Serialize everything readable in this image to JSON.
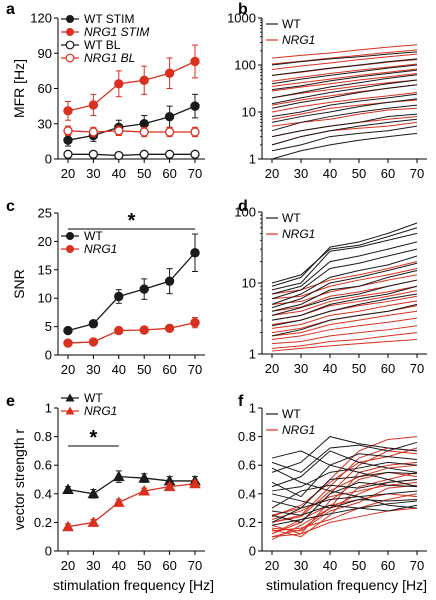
{
  "colors": {
    "wt": "#1a1a1a",
    "nrg1": "#d9301f",
    "axis": "#000000"
  },
  "chart_data": [
    {
      "panel": "a",
      "type": "line",
      "x": [
        20,
        30,
        40,
        50,
        60,
        70
      ],
      "ylabel": "MFR [Hz]",
      "ylim": [
        0,
        120
      ],
      "yticks": [
        0,
        30,
        60,
        90,
        120
      ],
      "scale": "linear",
      "legend_position": "top-left",
      "series": [
        {
          "name": "WT STIM",
          "color_key": "wt",
          "marker": "circle-filled",
          "values": [
            16,
            20,
            27,
            30,
            36,
            45
          ],
          "err": [
            5,
            5,
            6,
            7,
            9,
            10
          ]
        },
        {
          "name": "NRG1 STIM",
          "color_key": "nrg1",
          "marker": "circle-filled",
          "values": [
            41,
            46,
            64,
            67,
            73,
            83
          ],
          "err": [
            8,
            9,
            11,
            12,
            13,
            14
          ]
        },
        {
          "name": "WT BL",
          "color_key": "wt",
          "marker": "circle-open",
          "values": [
            4,
            4,
            3,
            4,
            4,
            4
          ],
          "err": [
            2,
            1,
            1,
            1,
            1,
            1
          ]
        },
        {
          "name": "NRG1 BL",
          "color_key": "nrg1",
          "marker": "circle-open",
          "values": [
            24,
            23,
            24,
            23,
            23,
            23
          ],
          "err": [
            4,
            4,
            4,
            4,
            4,
            4
          ]
        }
      ]
    },
    {
      "panel": "b",
      "type": "line",
      "x": [
        20,
        30,
        40,
        50,
        60,
        70
      ],
      "scale": "log",
      "ylim": [
        1,
        1000
      ],
      "yticks": [
        1,
        10,
        100,
        1000
      ],
      "legend_position": "top-left",
      "legend": [
        {
          "name": "WT",
          "color_key": "wt"
        },
        {
          "name": "NRG1",
          "color_key": "nrg1"
        }
      ],
      "wt_lines": [
        [
          1,
          1.5,
          2,
          2.5,
          3,
          3.5
        ],
        [
          1.5,
          2,
          3,
          3.5,
          4,
          5
        ],
        [
          2,
          3,
          4,
          5,
          6,
          7
        ],
        [
          3,
          4,
          5,
          6,
          8,
          9
        ],
        [
          4,
          6,
          8,
          10,
          12,
          14
        ],
        [
          6,
          8,
          10,
          13,
          16,
          19
        ],
        [
          8,
          10,
          14,
          17,
          20,
          24
        ],
        [
          12,
          16,
          20,
          26,
          32,
          38
        ],
        [
          15,
          20,
          26,
          32,
          40,
          48
        ],
        [
          20,
          26,
          34,
          42,
          52,
          62
        ],
        [
          30,
          36,
          46,
          56,
          66,
          78
        ],
        [
          40,
          50,
          60,
          72,
          86,
          100
        ],
        [
          60,
          72,
          86,
          100,
          118,
          135
        ],
        [
          100,
          118,
          135,
          150,
          170,
          190
        ]
      ],
      "nrg1_lines": [
        [
          2,
          3,
          4,
          4.5,
          5,
          6
        ],
        [
          3,
          4,
          5,
          6,
          7,
          8
        ],
        [
          5,
          6,
          7,
          9,
          11,
          12
        ],
        [
          7,
          9,
          12,
          14,
          16,
          18
        ],
        [
          10,
          13,
          16,
          19,
          22,
          26
        ],
        [
          14,
          18,
          22,
          27,
          32,
          38
        ],
        [
          20,
          25,
          30,
          36,
          42,
          48
        ],
        [
          28,
          34,
          40,
          48,
          56,
          66
        ],
        [
          35,
          42,
          50,
          60,
          70,
          82
        ],
        [
          45,
          55,
          66,
          78,
          90,
          105
        ],
        [
          60,
          70,
          84,
          98,
          115,
          130
        ],
        [
          80,
          95,
          110,
          130,
          150,
          170
        ],
        [
          105,
          120,
          140,
          160,
          185,
          210
        ],
        [
          140,
          160,
          180,
          210,
          240,
          270
        ]
      ]
    },
    {
      "panel": "c",
      "type": "line",
      "x": [
        20,
        30,
        40,
        50,
        60,
        70
      ],
      "ylabel": "SNR",
      "ylim": [
        0,
        25
      ],
      "yticks": [
        0,
        5,
        10,
        15,
        20,
        25
      ],
      "scale": "linear",
      "legend_position": "top-left",
      "significance": {
        "label": "*",
        "from": 20,
        "to": 70
      },
      "series": [
        {
          "name": "WT",
          "color_key": "wt",
          "marker": "circle-filled",
          "values": [
            4.3,
            5.5,
            10.3,
            11.6,
            13.0,
            18.0
          ],
          "err": [
            0.3,
            0.3,
            1.2,
            1.8,
            2.2,
            3.3
          ]
        },
        {
          "name": "NRG1",
          "color_key": "nrg1",
          "marker": "circle-filled",
          "values": [
            2.1,
            2.3,
            4.3,
            4.4,
            4.7,
            5.7
          ],
          "err": [
            0.2,
            0.2,
            0.6,
            0.5,
            0.5,
            0.9
          ]
        }
      ]
    },
    {
      "panel": "d",
      "type": "line",
      "x": [
        20,
        30,
        40,
        50,
        60,
        70
      ],
      "scale": "log",
      "ylim": [
        1,
        100
      ],
      "yticks": [
        1,
        10,
        100
      ],
      "legend_position": "top-left",
      "legend": [
        {
          "name": "WT",
          "color_key": "wt"
        },
        {
          "name": "NRG1",
          "color_key": "nrg1"
        }
      ],
      "wt_lines": [
        [
          1.8,
          2.2,
          3,
          3.5,
          4,
          5
        ],
        [
          2.5,
          3,
          4,
          5,
          6,
          7
        ],
        [
          3,
          3.5,
          5,
          6,
          7,
          9
        ],
        [
          3.5,
          4.5,
          6,
          7,
          9,
          11
        ],
        [
          4,
          5,
          8,
          9,
          12,
          15
        ],
        [
          4.5,
          6,
          10,
          12,
          15,
          19
        ],
        [
          5,
          7,
          12,
          15,
          18,
          24
        ],
        [
          6,
          8,
          16,
          19,
          24,
          30
        ],
        [
          7,
          9,
          20,
          24,
          30,
          38
        ],
        [
          8,
          10,
          28,
          32,
          40,
          50
        ],
        [
          9,
          12,
          32,
          38,
          50,
          70
        ],
        [
          10,
          13,
          30,
          34,
          45,
          60
        ]
      ],
      "nrg1_lines": [
        [
          1.1,
          1.2,
          1.3,
          1.4,
          1.5,
          1.6
        ],
        [
          1.2,
          1.3,
          1.5,
          1.6,
          1.8,
          2
        ],
        [
          1.4,
          1.5,
          1.8,
          2,
          2.2,
          2.5
        ],
        [
          1.6,
          1.8,
          2.2,
          2.5,
          2.8,
          3.2
        ],
        [
          1.8,
          2,
          2.6,
          3,
          3.5,
          4
        ],
        [
          2,
          2.3,
          3,
          3.5,
          4,
          4.8
        ],
        [
          2.3,
          2.6,
          3.5,
          4,
          4.8,
          5.6
        ],
        [
          2.6,
          3,
          4,
          4.8,
          5.5,
          6.5
        ],
        [
          3,
          3.5,
          4.8,
          5.5,
          6.5,
          7.8
        ],
        [
          3.5,
          4,
          5.5,
          6.5,
          7.5,
          9
        ],
        [
          4,
          4.6,
          6.5,
          7.5,
          9,
          11
        ],
        [
          5,
          5.5,
          7.5,
          9,
          11,
          13
        ],
        [
          6,
          6.5,
          9,
          11,
          13,
          16
        ],
        [
          7,
          8,
          11,
          13,
          16,
          20
        ]
      ]
    },
    {
      "panel": "e",
      "type": "line",
      "x": [
        20,
        30,
        40,
        50,
        60,
        70
      ],
      "xlabel": "stimulation frequency [Hz]",
      "ylabel": "vector strength r",
      "ylim": [
        0,
        1
      ],
      "yticks": [
        0,
        0.2,
        0.4,
        0.6,
        0.8,
        1
      ],
      "scale": "linear",
      "legend_position": "top-left",
      "significance": {
        "label": "*",
        "from": 20,
        "to": 40
      },
      "series": [
        {
          "name": "WT",
          "color_key": "wt",
          "marker": "triangle-filled",
          "values": [
            0.43,
            0.4,
            0.52,
            0.51,
            0.49,
            0.49
          ],
          "err": [
            0.02,
            0.03,
            0.04,
            0.03,
            0.03,
            0.03
          ]
        },
        {
          "name": "NRG1",
          "color_key": "nrg1",
          "marker": "triangle-filled",
          "values": [
            0.17,
            0.2,
            0.34,
            0.42,
            0.45,
            0.47
          ],
          "err": [
            0.02,
            0.02,
            0.02,
            0.02,
            0.02,
            0.02
          ]
        }
      ]
    },
    {
      "panel": "f",
      "type": "line",
      "x": [
        20,
        30,
        40,
        50,
        60,
        70
      ],
      "xlabel": "stimulation frequency [Hz]",
      "ylim": [
        0,
        1
      ],
      "yticks": [
        0,
        0.2,
        0.4,
        0.6,
        0.8,
        1
      ],
      "scale": "linear",
      "legend_position": "top-left",
      "legend": [
        {
          "name": "WT",
          "color_key": "wt"
        },
        {
          "name": "NRG1",
          "color_key": "nrg1"
        }
      ],
      "wt_lines": [
        [
          0.62,
          0.55,
          0.72,
          0.74,
          0.7,
          0.76
        ],
        [
          0.55,
          0.62,
          0.8,
          0.75,
          0.72,
          0.7
        ],
        [
          0.48,
          0.38,
          0.6,
          0.68,
          0.66,
          0.64
        ],
        [
          0.42,
          0.45,
          0.55,
          0.58,
          0.62,
          0.6
        ],
        [
          0.35,
          0.3,
          0.5,
          0.52,
          0.55,
          0.54
        ],
        [
          0.3,
          0.42,
          0.46,
          0.44,
          0.48,
          0.5
        ],
        [
          0.25,
          0.2,
          0.4,
          0.48,
          0.46,
          0.45
        ],
        [
          0.2,
          0.3,
          0.36,
          0.38,
          0.4,
          0.42
        ],
        [
          0.4,
          0.35,
          0.3,
          0.36,
          0.35,
          0.36
        ],
        [
          0.58,
          0.48,
          0.42,
          0.38,
          0.32,
          0.3
        ],
        [
          0.28,
          0.25,
          0.32,
          0.3,
          0.33,
          0.35
        ],
        [
          0.65,
          0.7,
          0.6,
          0.55,
          0.5,
          0.45
        ],
        [
          0.18,
          0.22,
          0.26,
          0.3,
          0.28,
          0.32
        ],
        [
          0.45,
          0.52,
          0.7,
          0.62,
          0.58,
          0.55
        ]
      ],
      "nrg1_lines": [
        [
          0.1,
          0.15,
          0.3,
          0.55,
          0.6,
          0.62
        ],
        [
          0.12,
          0.2,
          0.4,
          0.6,
          0.7,
          0.68
        ],
        [
          0.15,
          0.1,
          0.25,
          0.45,
          0.5,
          0.55
        ],
        [
          0.2,
          0.25,
          0.45,
          0.65,
          0.72,
          0.7
        ],
        [
          0.18,
          0.12,
          0.35,
          0.5,
          0.55,
          0.52
        ],
        [
          0.08,
          0.18,
          0.3,
          0.4,
          0.48,
          0.5
        ],
        [
          0.22,
          0.28,
          0.38,
          0.42,
          0.46,
          0.48
        ],
        [
          0.14,
          0.16,
          0.22,
          0.3,
          0.36,
          0.4
        ],
        [
          0.25,
          0.3,
          0.5,
          0.7,
          0.78,
          0.8
        ],
        [
          0.12,
          0.22,
          0.32,
          0.36,
          0.4,
          0.38
        ],
        [
          0.16,
          0.14,
          0.28,
          0.34,
          0.44,
          0.46
        ],
        [
          0.2,
          0.24,
          0.42,
          0.52,
          0.58,
          0.6
        ],
        [
          0.1,
          0.12,
          0.2,
          0.24,
          0.28,
          0.3
        ],
        [
          0.24,
          0.32,
          0.48,
          0.62,
          0.66,
          0.72
        ]
      ]
    }
  ]
}
